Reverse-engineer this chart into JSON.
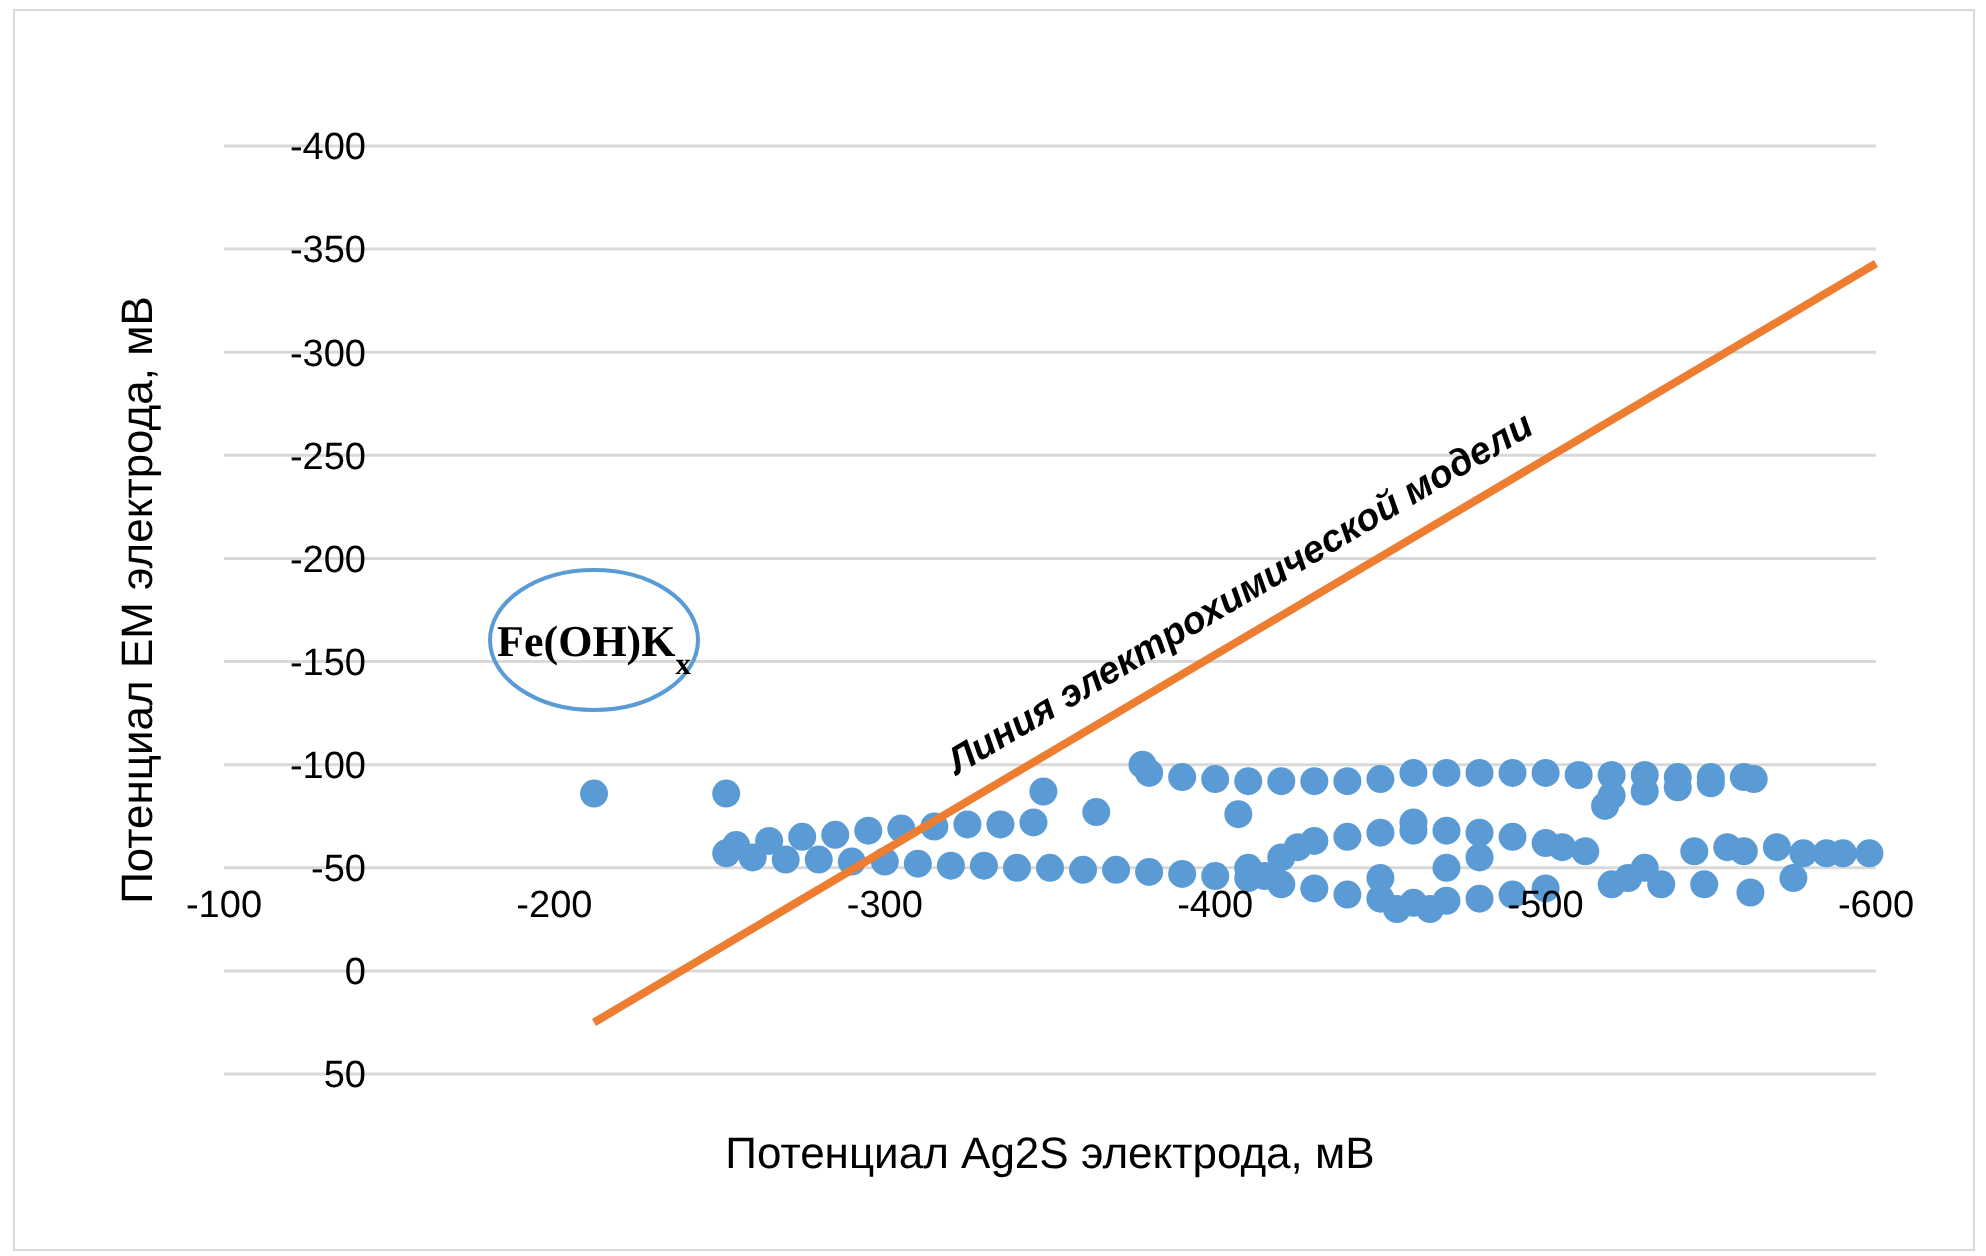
{
  "chart_data": {
    "type": "scatter",
    "xlabel": "Потенциал Ag2S электрода, мВ",
    "ylabel": "Потенциал ЕМ электрода, мВ",
    "xlim": [
      -100,
      -600
    ],
    "xticks": [
      -100,
      -200,
      -300,
      -400,
      -500,
      -600
    ],
    "ylim": [
      50,
      -400
    ],
    "yticks": [
      -400,
      -350,
      -300,
      -250,
      -200,
      -150,
      -100,
      -50,
      0,
      50
    ],
    "grid": "y",
    "legend": false,
    "marker": "circle",
    "annotations": [
      "Fe(OH)K$_{x}$"
    ],
    "series": [
      {
        "color": "#5b9bd5",
        "x": [
          -212,
          -252,
          -348,
          -364,
          -407,
          -252,
          -260,
          -270,
          -280,
          -290,
          -300,
          -310,
          -320,
          -330,
          -340,
          -350,
          -360,
          -370,
          -380,
          -390,
          -400,
          -410,
          -415,
          -255,
          -265,
          -275,
          -285,
          -295,
          -305,
          -315,
          -325,
          -335,
          -345,
          -410,
          -420,
          -425,
          -430,
          -440,
          -450,
          -460,
          -470,
          -480,
          -490,
          -500,
          -505,
          -430,
          -440,
          -450,
          -460,
          -470,
          -480,
          -490,
          -455,
          -465,
          -450,
          -470,
          -480,
          -460,
          -500,
          -420,
          -512,
          -520,
          -525,
          -530,
          -535,
          -545,
          -548,
          -560,
          -562,
          -570,
          -578,
          -585,
          -590,
          -598,
          -575,
          -555,
          -378,
          -380,
          -390,
          -400,
          -410,
          -420,
          -430,
          -440,
          -450,
          -460,
          -470,
          -480,
          -490,
          -500,
          -510,
          -520,
          -530,
          -540,
          -550,
          -560,
          -563,
          -520,
          -530,
          -540,
          -550,
          -518
        ],
        "values": [
          -86,
          -86,
          -87,
          -77,
          -76,
          -57,
          -55,
          -54,
          -54,
          -53,
          -53,
          -52,
          -51,
          -51,
          -50,
          -50,
          -49,
          -49,
          -48,
          -47,
          -46,
          -45,
          -46,
          -61,
          -63,
          -65,
          -66,
          -68,
          -69,
          -70,
          -71,
          -71,
          -72,
          -50,
          -55,
          -60,
          -63,
          -65,
          -67,
          -68,
          -68,
          -67,
          -65,
          -62,
          -60,
          -40,
          -37,
          -35,
          -33,
          -34,
          -35,
          -37,
          -30,
          -30,
          -45,
          -50,
          -55,
          -72,
          -40,
          -42,
          -58,
          -42,
          -45,
          -50,
          -42,
          -58,
          -42,
          -58,
          -38,
          -60,
          -57,
          -57,
          -57,
          -57,
          -45,
          -60,
          -100,
          -96,
          -94,
          -93,
          -92,
          -92,
          -92,
          -92,
          -93,
          -96,
          -96,
          -96,
          -96,
          -96,
          -95,
          -95,
          -95,
          -94,
          -94,
          -94,
          -93,
          -85,
          -87,
          -89,
          -91,
          -80
        ]
      },
      {
        "type": "line",
        "marker": "none",
        "name": "Линия электрохимической модели",
        "color": "#ed7d31",
        "x": [
          -212,
          -600
        ],
        "values": [
          25,
          -343
        ]
      }
    ]
  }
}
